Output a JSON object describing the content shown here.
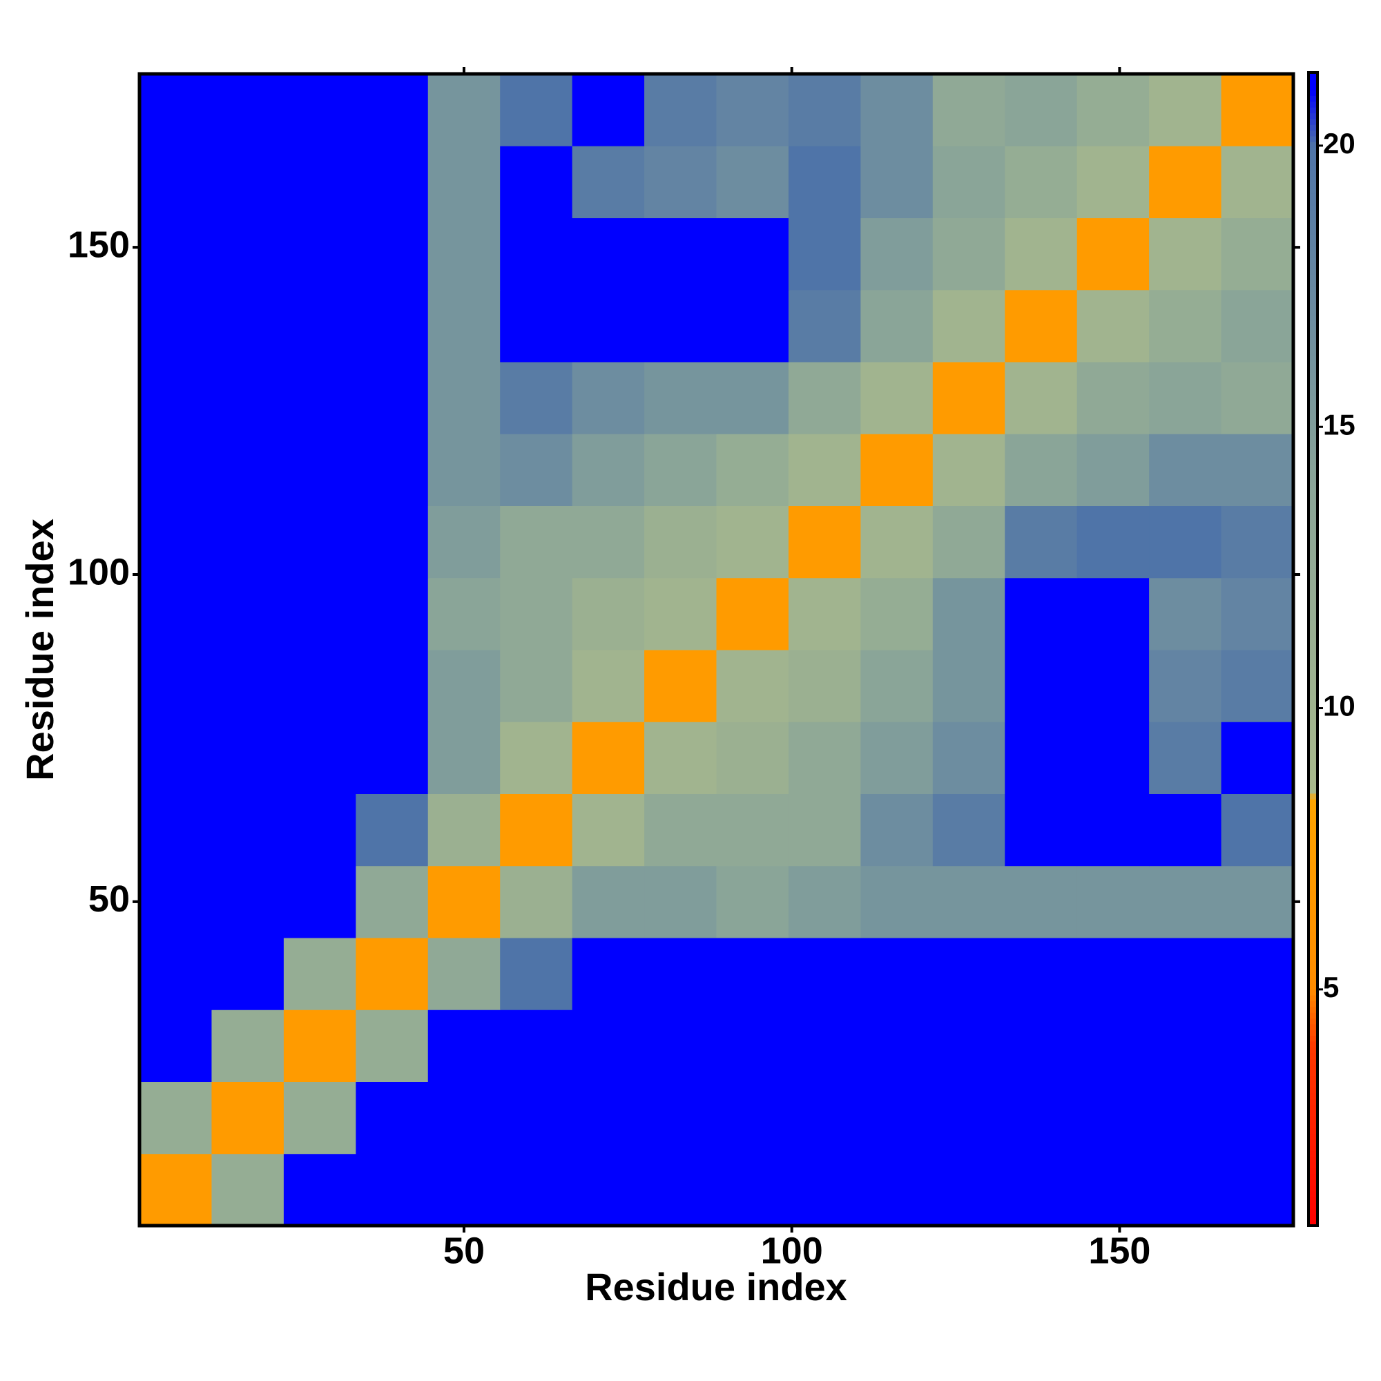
{
  "chart_data": {
    "type": "heatmap",
    "x_label": "Residue index",
    "y_label": "Residue index",
    "xbins": [
      0.5,
      11.5,
      22.5,
      33.5,
      44.5,
      55.5,
      66.5,
      77.5,
      88.5,
      99.5,
      110.5,
      121.5,
      132.5,
      143.5,
      154.5,
      165.5,
      176.5
    ],
    "ybins": [
      0.5,
      11.5,
      22.5,
      33.5,
      44.5,
      55.5,
      66.5,
      77.5,
      88.5,
      99.5,
      110.5,
      121.5,
      132.5,
      143.5,
      154.5,
      165.5,
      176.5
    ],
    "z": [
      [
        7,
        12,
        21,
        21,
        21,
        21,
        21,
        21,
        21,
        21,
        21,
        21,
        21,
        21,
        21,
        21
      ],
      [
        12,
        7,
        12,
        21,
        21,
        21,
        21,
        21,
        21,
        21,
        21,
        21,
        21,
        21,
        21,
        21
      ],
      [
        21,
        12,
        7,
        12,
        21,
        21,
        21,
        21,
        21,
        21,
        21,
        21,
        21,
        21,
        21,
        21
      ],
      [
        21,
        21,
        12,
        7,
        13,
        20,
        21,
        21,
        21,
        21,
        21,
        21,
        21,
        21,
        21,
        21
      ],
      [
        21,
        21,
        21,
        13,
        7,
        11,
        15,
        15,
        14,
        15,
        16,
        16,
        16,
        16,
        16,
        16
      ],
      [
        21,
        21,
        21,
        20,
        11,
        7,
        10,
        13,
        13,
        13,
        17,
        19,
        21,
        21,
        21,
        20
      ],
      [
        21,
        21,
        21,
        21,
        15,
        10,
        7,
        10,
        11,
        13,
        15,
        17,
        21,
        21,
        19,
        21
      ],
      [
        21,
        21,
        21,
        21,
        15,
        13,
        10,
        7,
        10,
        11,
        14,
        16,
        21,
        21,
        18,
        19
      ],
      [
        21,
        21,
        21,
        21,
        14,
        13,
        11,
        10,
        7,
        10,
        12,
        16,
        21,
        21,
        17,
        18
      ],
      [
        21,
        21,
        21,
        21,
        15,
        13,
        13,
        11,
        10,
        7,
        10,
        13,
        19,
        20,
        20,
        19
      ],
      [
        21,
        21,
        21,
        21,
        16,
        17,
        15,
        14,
        12,
        10,
        7,
        10,
        14,
        15,
        17,
        17
      ],
      [
        21,
        21,
        21,
        21,
        16,
        19,
        17,
        16,
        16,
        13,
        10,
        7,
        10,
        13,
        14,
        13
      ],
      [
        21,
        21,
        21,
        21,
        16,
        21,
        21,
        21,
        21,
        19,
        14,
        10,
        7,
        10,
        12,
        14
      ],
      [
        21,
        21,
        21,
        21,
        16,
        21,
        21,
        21,
        21,
        20,
        15,
        13,
        10,
        7,
        10,
        12
      ],
      [
        21,
        21,
        21,
        21,
        16,
        21,
        19,
        18,
        17,
        20,
        17,
        14,
        12,
        10,
        7,
        10
      ],
      [
        21,
        21,
        21,
        21,
        16,
        20,
        21,
        19,
        18,
        19,
        17,
        13,
        14,
        12,
        10,
        7
      ]
    ],
    "xlim": [
      0.5,
      176.5
    ],
    "ylim": [
      0.5,
      176.5
    ],
    "xticks": [
      50,
      100,
      150
    ],
    "yticks": [
      50,
      100,
      150
    ],
    "zlim": [
      0.8,
      21.3
    ],
    "zticks": [
      5,
      10,
      15,
      20
    ],
    "colorscale": [
      [
        0.8,
        "#ff0000"
      ],
      [
        4,
        "#ff3a00"
      ],
      [
        5,
        "#ff8c00"
      ],
      [
        8.4,
        "#ffa500"
      ],
      [
        8.5,
        "#a9ba8c"
      ],
      [
        14,
        "#8aa598"
      ],
      [
        20,
        "#4f74a8"
      ],
      [
        21,
        "#0000ff"
      ],
      [
        21.3,
        "#0000ff"
      ]
    ]
  }
}
